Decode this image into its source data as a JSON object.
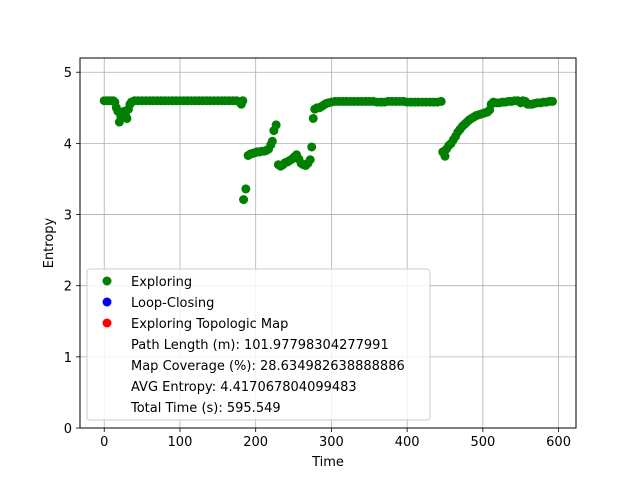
{
  "chart_data": {
    "type": "scatter",
    "title": "",
    "xlabel": "Time",
    "ylabel": "Entropy",
    "xlim": [
      -32,
      623
    ],
    "ylim": [
      0,
      5.2
    ],
    "x_ticks": [
      0,
      100,
      200,
      300,
      400,
      500,
      600
    ],
    "y_ticks": [
      0,
      1,
      2,
      3,
      4,
      5
    ],
    "grid": true,
    "legend_placement": "lower-left",
    "legend": [
      {
        "label": "Exploring",
        "color": "#008000",
        "marker": "circle"
      },
      {
        "label": "Loop-Closing",
        "color": "#0000ff",
        "marker": "circle"
      },
      {
        "label": "Exploring Topologic Map",
        "color": "#ff0000",
        "marker": "circle"
      }
    ],
    "stats": [
      "Path Length (m): 101.97798304277991",
      "Map Coverage (%): 28.634982638888886",
      "AVG Entropy: 4.417067804099483",
      "Total Time (s): 595.549"
    ],
    "series": [
      {
        "name": "Exploring",
        "color": "#008000",
        "points": [
          [
            0,
            4.6
          ],
          [
            4,
            4.6
          ],
          [
            8,
            4.6
          ],
          [
            12,
            4.6
          ],
          [
            14,
            4.58
          ],
          [
            16,
            4.5
          ],
          [
            18,
            4.45
          ],
          [
            20,
            4.3
          ],
          [
            22,
            4.38
          ],
          [
            24,
            4.42
          ],
          [
            26,
            4.45
          ],
          [
            28,
            4.4
          ],
          [
            30,
            4.35
          ],
          [
            32,
            4.48
          ],
          [
            34,
            4.55
          ],
          [
            36,
            4.58
          ],
          [
            40,
            4.6
          ],
          [
            45,
            4.6
          ],
          [
            50,
            4.6
          ],
          [
            55,
            4.6
          ],
          [
            60,
            4.6
          ],
          [
            65,
            4.6
          ],
          [
            70,
            4.6
          ],
          [
            75,
            4.6
          ],
          [
            80,
            4.6
          ],
          [
            85,
            4.6
          ],
          [
            90,
            4.6
          ],
          [
            95,
            4.6
          ],
          [
            100,
            4.6
          ],
          [
            105,
            4.6
          ],
          [
            110,
            4.6
          ],
          [
            115,
            4.6
          ],
          [
            120,
            4.6
          ],
          [
            125,
            4.6
          ],
          [
            130,
            4.6
          ],
          [
            135,
            4.6
          ],
          [
            140,
            4.6
          ],
          [
            145,
            4.6
          ],
          [
            150,
            4.6
          ],
          [
            155,
            4.6
          ],
          [
            160,
            4.6
          ],
          [
            165,
            4.6
          ],
          [
            170,
            4.6
          ],
          [
            175,
            4.6
          ],
          [
            179,
            4.58
          ],
          [
            181,
            4.55
          ],
          [
            183,
            4.6
          ],
          [
            184,
            3.21
          ],
          [
            187,
            3.36
          ],
          [
            190,
            3.83
          ],
          [
            193,
            3.85
          ],
          [
            196,
            3.86
          ],
          [
            199,
            3.87
          ],
          [
            202,
            3.88
          ],
          [
            205,
            3.88
          ],
          [
            208,
            3.89
          ],
          [
            211,
            3.89
          ],
          [
            214,
            3.9
          ],
          [
            217,
            3.92
          ],
          [
            220,
            3.98
          ],
          [
            222,
            4.03
          ],
          [
            224,
            4.18
          ],
          [
            227,
            4.26
          ],
          [
            230,
            3.7
          ],
          [
            233,
            3.68
          ],
          [
            236,
            3.7
          ],
          [
            239,
            3.73
          ],
          [
            242,
            3.74
          ],
          [
            245,
            3.76
          ],
          [
            248,
            3.78
          ],
          [
            251,
            3.81
          ],
          [
            254,
            3.84
          ],
          [
            257,
            3.78
          ],
          [
            260,
            3.72
          ],
          [
            263,
            3.7
          ],
          [
            266,
            3.69
          ],
          [
            269,
            3.72
          ],
          [
            272,
            3.77
          ],
          [
            274,
            3.95
          ],
          [
            276,
            4.35
          ],
          [
            278,
            4.48
          ],
          [
            281,
            4.5
          ],
          [
            284,
            4.5
          ],
          [
            287,
            4.52
          ],
          [
            290,
            4.54
          ],
          [
            293,
            4.56
          ],
          [
            296,
            4.57
          ],
          [
            300,
            4.58
          ],
          [
            305,
            4.59
          ],
          [
            310,
            4.59
          ],
          [
            315,
            4.59
          ],
          [
            320,
            4.59
          ],
          [
            325,
            4.59
          ],
          [
            330,
            4.59
          ],
          [
            335,
            4.59
          ],
          [
            340,
            4.59
          ],
          [
            345,
            4.59
          ],
          [
            350,
            4.59
          ],
          [
            355,
            4.59
          ],
          [
            360,
            4.58
          ],
          [
            365,
            4.58
          ],
          [
            370,
            4.58
          ],
          [
            375,
            4.59
          ],
          [
            380,
            4.59
          ],
          [
            385,
            4.59
          ],
          [
            390,
            4.59
          ],
          [
            395,
            4.59
          ],
          [
            400,
            4.58
          ],
          [
            405,
            4.58
          ],
          [
            410,
            4.58
          ],
          [
            415,
            4.58
          ],
          [
            420,
            4.58
          ],
          [
            425,
            4.58
          ],
          [
            430,
            4.58
          ],
          [
            435,
            4.58
          ],
          [
            440,
            4.58
          ],
          [
            445,
            4.59
          ],
          [
            447,
            3.88
          ],
          [
            450,
            3.82
          ],
          [
            452,
            3.92
          ],
          [
            455,
            3.97
          ],
          [
            458,
            4.0
          ],
          [
            461,
            4.05
          ],
          [
            464,
            4.1
          ],
          [
            467,
            4.16
          ],
          [
            470,
            4.2
          ],
          [
            473,
            4.24
          ],
          [
            476,
            4.27
          ],
          [
            479,
            4.3
          ],
          [
            482,
            4.33
          ],
          [
            485,
            4.35
          ],
          [
            488,
            4.37
          ],
          [
            491,
            4.39
          ],
          [
            494,
            4.4
          ],
          [
            497,
            4.41
          ],
          [
            500,
            4.42
          ],
          [
            503,
            4.43
          ],
          [
            506,
            4.44
          ],
          [
            509,
            4.47
          ],
          [
            511,
            4.55
          ],
          [
            514,
            4.58
          ],
          [
            518,
            4.57
          ],
          [
            522,
            4.57
          ],
          [
            526,
            4.58
          ],
          [
            530,
            4.58
          ],
          [
            534,
            4.59
          ],
          [
            538,
            4.59
          ],
          [
            542,
            4.6
          ],
          [
            546,
            4.6
          ],
          [
            550,
            4.57
          ],
          [
            553,
            4.6
          ],
          [
            556,
            4.59
          ],
          [
            559,
            4.55
          ],
          [
            562,
            4.55
          ],
          [
            565,
            4.55
          ],
          [
            568,
            4.56
          ],
          [
            572,
            4.57
          ],
          [
            576,
            4.57
          ],
          [
            580,
            4.58
          ],
          [
            584,
            4.58
          ],
          [
            588,
            4.59
          ],
          [
            592,
            4.59
          ]
        ]
      }
    ]
  }
}
